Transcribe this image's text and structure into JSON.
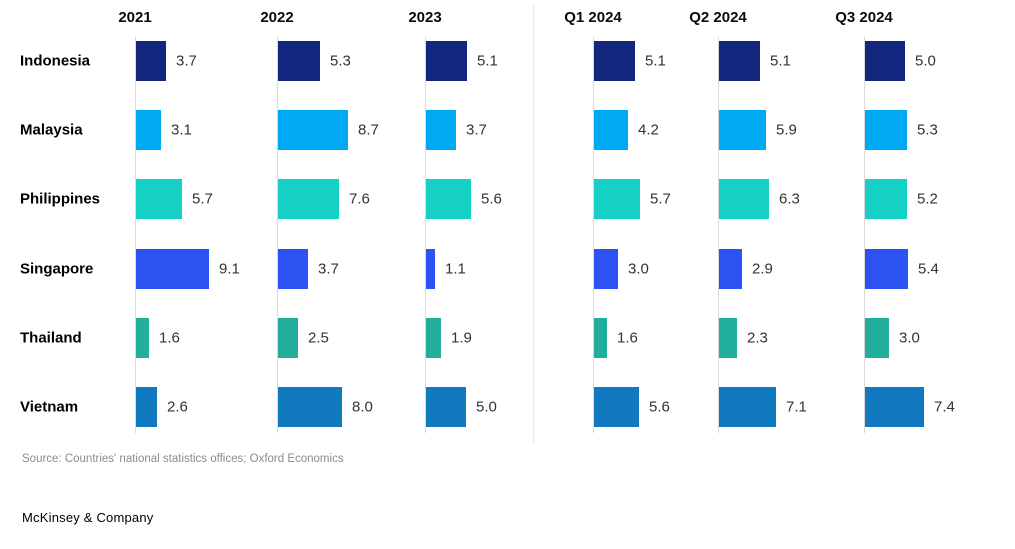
{
  "chart_data": {
    "type": "bar",
    "title": "",
    "orientation": "horizontal",
    "grid": "per-group vertical baseline only",
    "legend": "none",
    "value_labels": "right of each bar, one decimal",
    "groups": [
      "2021",
      "2022",
      "2023",
      "Q1 2024",
      "Q2 2024",
      "Q3 2024"
    ],
    "categories": [
      "Indonesia",
      "Malaysia",
      "Philippines",
      "Singapore",
      "Thailand",
      "Vietnam"
    ],
    "series": [
      {
        "name": "Indonesia",
        "color": "#14277E",
        "values": [
          3.7,
          5.3,
          5.1,
          5.1,
          5.1,
          5.0
        ]
      },
      {
        "name": "Malaysia",
        "color": "#00A9F4",
        "values": [
          3.1,
          8.7,
          3.7,
          4.2,
          5.9,
          5.3
        ]
      },
      {
        "name": "Philippines",
        "color": "#15D0C5",
        "values": [
          5.7,
          7.6,
          5.6,
          5.7,
          6.3,
          5.2
        ]
      },
      {
        "name": "Singapore",
        "color": "#2C53F2",
        "values": [
          9.1,
          3.7,
          1.1,
          3.0,
          2.9,
          5.4
        ]
      },
      {
        "name": "Thailand",
        "color": "#21AE9B",
        "values": [
          1.6,
          2.5,
          1.9,
          1.6,
          2.3,
          3.0
        ]
      },
      {
        "name": "Vietnam",
        "color": "#1179BD",
        "values": [
          2.6,
          8.0,
          5.0,
          5.6,
          7.1,
          7.4
        ]
      }
    ],
    "xlim": [
      0,
      10
    ]
  },
  "footer": {
    "source": "Source: Countries' national statistics offices; Oxford Economics",
    "brand": "McKinsey & Company"
  }
}
